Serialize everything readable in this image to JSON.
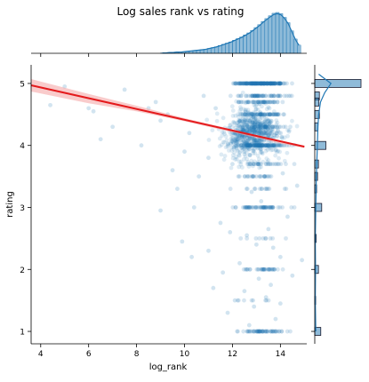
{
  "chart_data": {
    "type": "scatter",
    "title": "Log sales rank vs rating",
    "xlabel": "log_rank",
    "ylabel": "rating",
    "xlim": [
      3.6,
      15.1
    ],
    "ylim": [
      0.8,
      5.3
    ],
    "xticks": [
      4,
      6,
      8,
      10,
      12,
      14
    ],
    "yticks": [
      1,
      2,
      3,
      4,
      5
    ],
    "grid": false,
    "colors": {
      "points": "#1f77b4",
      "regression": "#e41a1c",
      "ci_band": "#f4a0a0",
      "hist": "#1f77b4"
    },
    "scatter_points": [
      [
        5.0,
        4.95
      ],
      [
        6.0,
        4.6
      ],
      [
        6.2,
        4.55
      ],
      [
        4.4,
        4.65
      ],
      [
        6.5,
        4.1
      ],
      [
        7.0,
        4.3
      ],
      [
        7.5,
        4.9
      ],
      [
        8.2,
        4.0
      ],
      [
        8.5,
        4.6
      ],
      [
        8.8,
        4.7
      ],
      [
        9.0,
        4.4
      ],
      [
        9.3,
        4.5
      ],
      [
        9.0,
        2.95
      ],
      [
        9.7,
        3.3
      ],
      [
        9.9,
        2.45
      ],
      [
        9.5,
        3.6
      ],
      [
        10.0,
        3.9
      ],
      [
        10.2,
        4.2
      ],
      [
        10.4,
        3.0
      ],
      [
        10.3,
        2.2
      ],
      [
        10.6,
        3.5
      ],
      [
        10.8,
        4.8
      ],
      [
        11.0,
        2.3
      ],
      [
        11.2,
        1.7
      ],
      [
        11.0,
        3.8
      ],
      [
        11.3,
        4.6
      ],
      [
        11.5,
        2.75
      ],
      [
        11.6,
        1.95
      ],
      [
        11.8,
        1.3
      ],
      [
        11.9,
        2.6
      ],
      [
        12.0,
        3.7
      ],
      [
        12.1,
        1.5
      ],
      [
        12.2,
        4.1
      ],
      [
        12.3,
        2.1
      ],
      [
        12.5,
        1.65
      ],
      [
        12.6,
        2.55
      ],
      [
        12.7,
        1.1
      ],
      [
        12.8,
        3.25
      ],
      [
        13.0,
        2.4
      ],
      [
        13.1,
        1.85
      ],
      [
        13.2,
        3.1
      ],
      [
        13.4,
        1.55
      ],
      [
        13.5,
        2.65
      ],
      [
        13.7,
        2.35
      ],
      [
        13.8,
        1.2
      ],
      [
        14.0,
        1.45
      ],
      [
        14.1,
        3.55
      ],
      [
        14.3,
        2.85
      ],
      [
        14.5,
        1.9
      ],
      [
        14.7,
        3.35
      ],
      [
        14.9,
        2.15
      ],
      [
        14.0,
        2.2
      ],
      [
        13.6,
        1.75
      ],
      [
        12.9,
        1.4
      ]
    ],
    "regression_line": {
      "x": [
        3.6,
        15.0
      ],
      "y": [
        4.97,
        3.98
      ]
    },
    "ci_band": {
      "x": [
        3.6,
        6,
        8,
        10,
        12,
        14,
        15
      ],
      "upper": [
        5.07,
        4.83,
        4.64,
        4.44,
        4.26,
        4.07,
        4.0
      ],
      "lower": [
        4.87,
        4.68,
        4.55,
        4.39,
        4.21,
        4.03,
        3.96
      ]
    },
    "top_marginal_hist": {
      "bin_edges_start": 9.0,
      "bin_width": 0.15,
      "counts": [
        1,
        1,
        2,
        2,
        3,
        3,
        4,
        5,
        6,
        7,
        8,
        9,
        10,
        12,
        14,
        16,
        19,
        22,
        25,
        28,
        32,
        36,
        40,
        45,
        50,
        56,
        63,
        70,
        78,
        85,
        92,
        98,
        100,
        97,
        88,
        75,
        55,
        35,
        20
      ]
    },
    "right_marginal_hist": {
      "bins": [
        {
          "y": 5.0,
          "count": 100
        },
        {
          "y": 4.8,
          "count": 10
        },
        {
          "y": 4.7,
          "count": 9
        },
        {
          "y": 4.5,
          "count": 10
        },
        {
          "y": 4.3,
          "count": 7
        },
        {
          "y": 4.0,
          "count": 24
        },
        {
          "y": 3.7,
          "count": 8
        },
        {
          "y": 3.5,
          "count": 6
        },
        {
          "y": 3.3,
          "count": 4
        },
        {
          "y": 3.0,
          "count": 15
        },
        {
          "y": 2.5,
          "count": 3
        },
        {
          "y": 2.0,
          "count": 8
        },
        {
          "y": 1.5,
          "count": 2
        },
        {
          "y": 1.0,
          "count": 13
        }
      ]
    },
    "right_kde": {
      "y": [
        1.0,
        1.5,
        2.0,
        2.5,
        3.0,
        3.5,
        4.0,
        4.3,
        4.5,
        4.7,
        4.85,
        5.0,
        5.15
      ],
      "density": [
        0.04,
        0.02,
        0.03,
        0.02,
        0.04,
        0.06,
        0.1,
        0.12,
        0.15,
        0.22,
        0.38,
        0.62,
        0.15
      ]
    }
  }
}
